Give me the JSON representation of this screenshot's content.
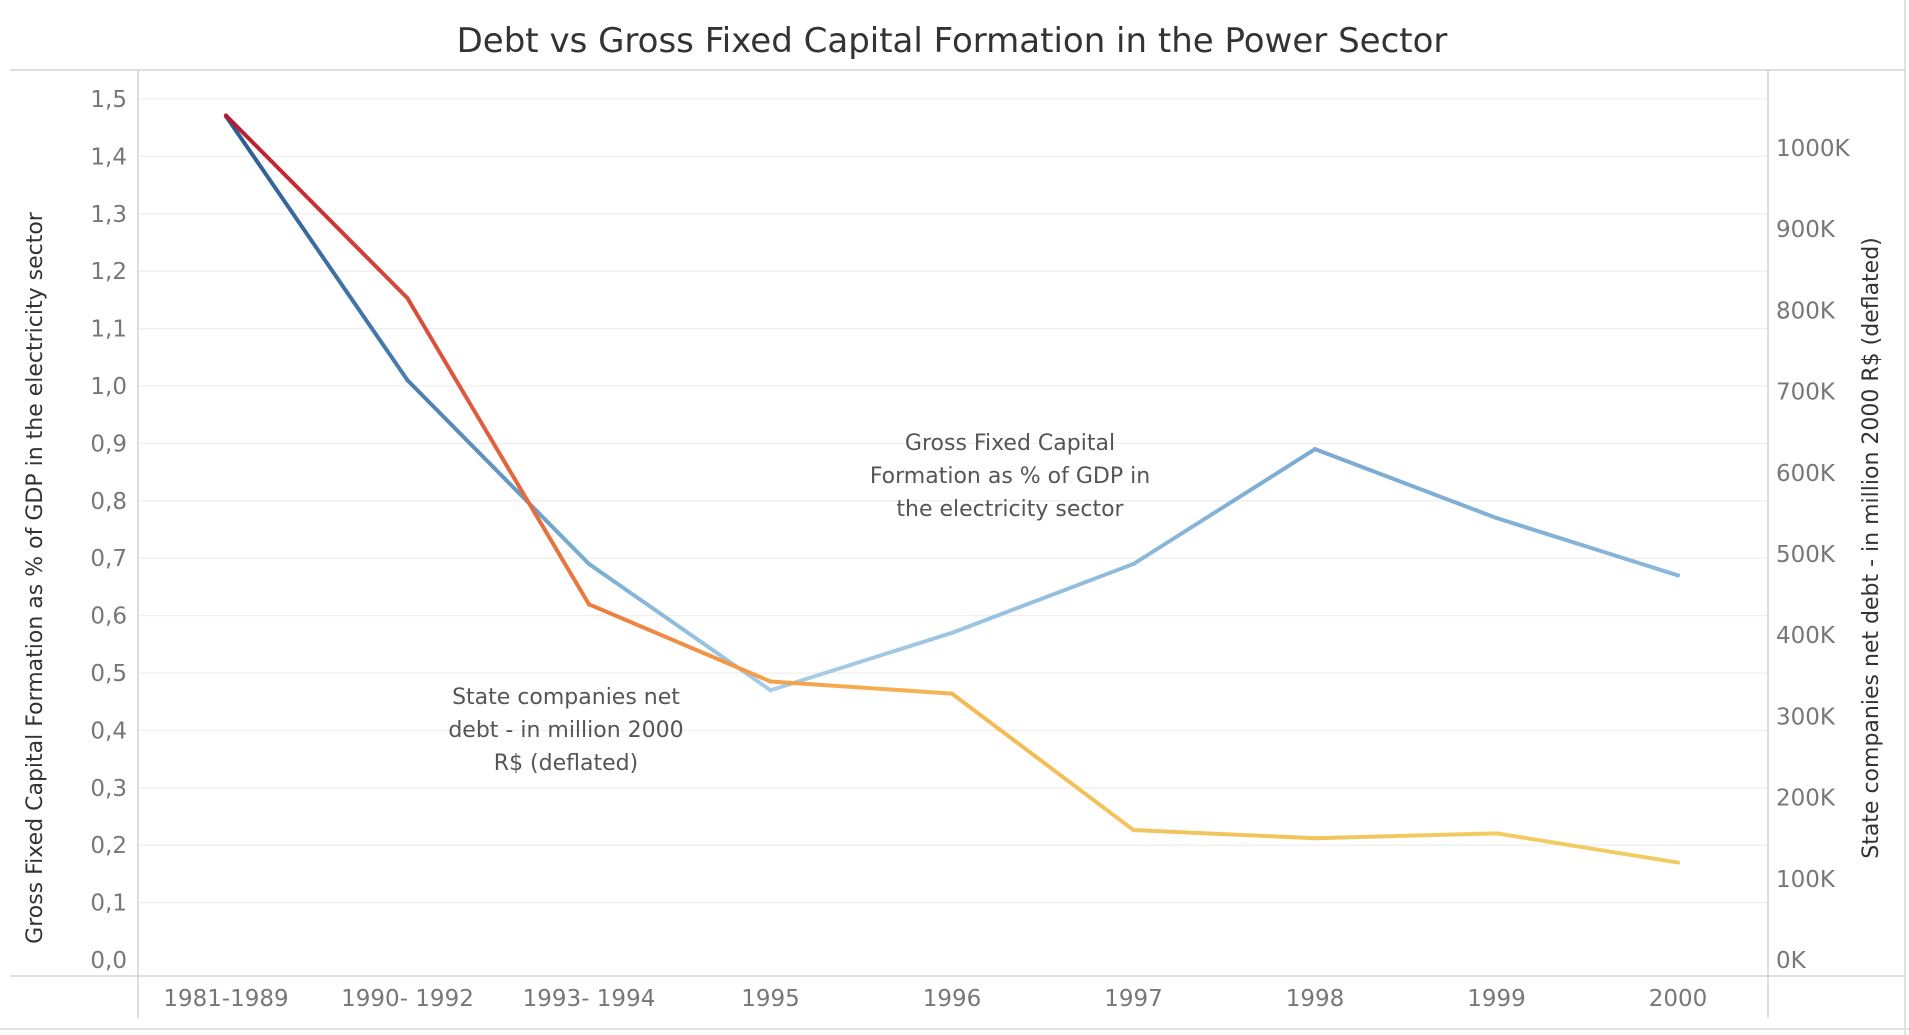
{
  "chart_data": {
    "type": "line",
    "title": "Debt vs Gross Fixed Capital Formation in the Power Sector",
    "categories": [
      "1981-1989",
      "1990- 1992",
      "1993- 1994",
      "1995",
      "1996",
      "1997",
      "1998",
      "1999",
      "2000"
    ],
    "ylabel_left": "Gross Fixed Capital Formation as % of GDP in the electricity sector",
    "ylabel_right": "State companies net debt - in million 2000 R$ (deflated)",
    "ylim_left": [
      0,
      1.5
    ],
    "ylim_right": [
      0,
      1080000
    ],
    "yticks_left": [
      "0,0",
      "0,1",
      "0,2",
      "0,3",
      "0,4",
      "0,5",
      "0,6",
      "0,7",
      "0,8",
      "0,9",
      "1,0",
      "1,1",
      "1,2",
      "1,3",
      "1,4",
      "1,5"
    ],
    "yticks_right": [
      "0K",
      "100K",
      "200K",
      "300K",
      "400K",
      "500K",
      "600K",
      "700K",
      "800K",
      "900K",
      "1000K"
    ],
    "grid": true,
    "series": [
      {
        "axis": "left",
        "values": [
          1.47,
          1.01,
          0.69,
          0.47,
          0.57,
          0.69,
          0.89,
          0.77,
          0.67
        ],
        "colors": [
          "#2b5d8f",
          "#4a7eb0",
          "#7aaed4",
          "#a8cde6",
          "#9dc5e2",
          "#8db9dc",
          "#7aaad3",
          "#82b0d6",
          "#8ab6da"
        ]
      },
      {
        "axis": "right",
        "values": [
          1040000,
          815000,
          438000,
          343000,
          328000,
          160000,
          150000,
          156000,
          120000
        ],
        "colors": [
          "#b7192f",
          "#d84a3c",
          "#ec7b3c",
          "#f4a04a",
          "#f6b653",
          "#f2c45d",
          "#f0c55c",
          "#f2cc61",
          "#f1cc62"
        ]
      }
    ],
    "annotations": [
      {
        "lines": [
          "Gross Fixed Capital",
          "Formation as % of GDP in",
          "the electricity sector"
        ]
      },
      {
        "lines": [
          "State companies net",
          "debt - in million 2000",
          "R$ (deflated)"
        ]
      }
    ]
  }
}
